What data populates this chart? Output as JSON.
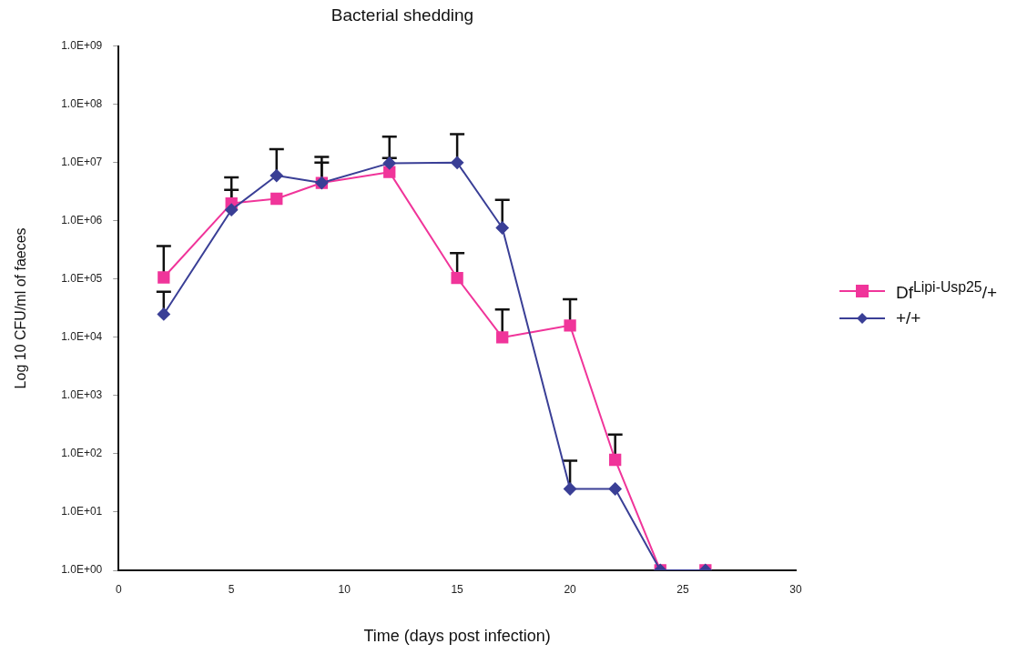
{
  "chart_data": {
    "type": "line",
    "title": "Bacterial shedding",
    "xlabel": "Time (days post infection)",
    "ylabel": "Log 10 CFU/ml of faeces",
    "log": "y",
    "grid": false,
    "legend": "right",
    "line_style": "solid",
    "xlim": [
      0,
      30
    ],
    "xticks": [
      0,
      5,
      10,
      15,
      20,
      25,
      30
    ],
    "ylim": [
      1,
      1000000000
    ],
    "yticks": [
      {
        "value": 1,
        "label": "1.0E+00"
      },
      {
        "value": 10,
        "label": "1.0E+01"
      },
      {
        "value": 100,
        "label": "1.0E+02"
      },
      {
        "value": 1000,
        "label": "1.0E+03"
      },
      {
        "value": 10000,
        "label": "1.0E+04"
      },
      {
        "value": 100000,
        "label": "1.0E+05"
      },
      {
        "value": 1000000,
        "label": "1.0E+06"
      },
      {
        "value": 10000000,
        "label": "1.0E+07"
      },
      {
        "value": 100000000,
        "label": "1.0E+08"
      },
      {
        "value": 1000000000,
        "label": "1.0E+09"
      }
    ],
    "series": [
      {
        "name": "Df$^{Lipi-Usp25}$/+",
        "color": "#f0359a",
        "marker": "square",
        "x": [
          2,
          5,
          7,
          9,
          12,
          15,
          17,
          20,
          22,
          24,
          26
        ],
        "values": [
          107000,
          2000000,
          2400000,
          4500000,
          6900000,
          105000,
          10000,
          16000,
          79,
          1,
          1
        ],
        "errors": [
          [
            107000,
            370000
          ],
          [
            2000000,
            5600000
          ],
          null,
          [
            4500000,
            10000000
          ],
          [
            6900000,
            12000000
          ],
          [
            105000,
            280000
          ],
          [
            10000,
            30000
          ],
          [
            16000,
            45000
          ],
          [
            79,
            215
          ],
          null,
          null
        ]
      },
      {
        "name": "+/+",
        "color": "#3a3f96",
        "marker": "diamond",
        "x": [
          2,
          5,
          7,
          9,
          12,
          15,
          17,
          20,
          22,
          24,
          26
        ],
        "values": [
          25000,
          1550000,
          6000000,
          4500000,
          9800000,
          10000000,
          760000,
          25,
          25,
          1,
          1
        ],
        "errors": [
          [
            25000,
            61000
          ],
          [
            1550000,
            3400000
          ],
          [
            6000000,
            17000000
          ],
          [
            4500000,
            12600000
          ],
          [
            9800000,
            28000000
          ],
          [
            10000000,
            31000000
          ],
          [
            760000,
            2300000
          ],
          [
            25,
            76
          ],
          null,
          null,
          null
        ]
      }
    ]
  }
}
